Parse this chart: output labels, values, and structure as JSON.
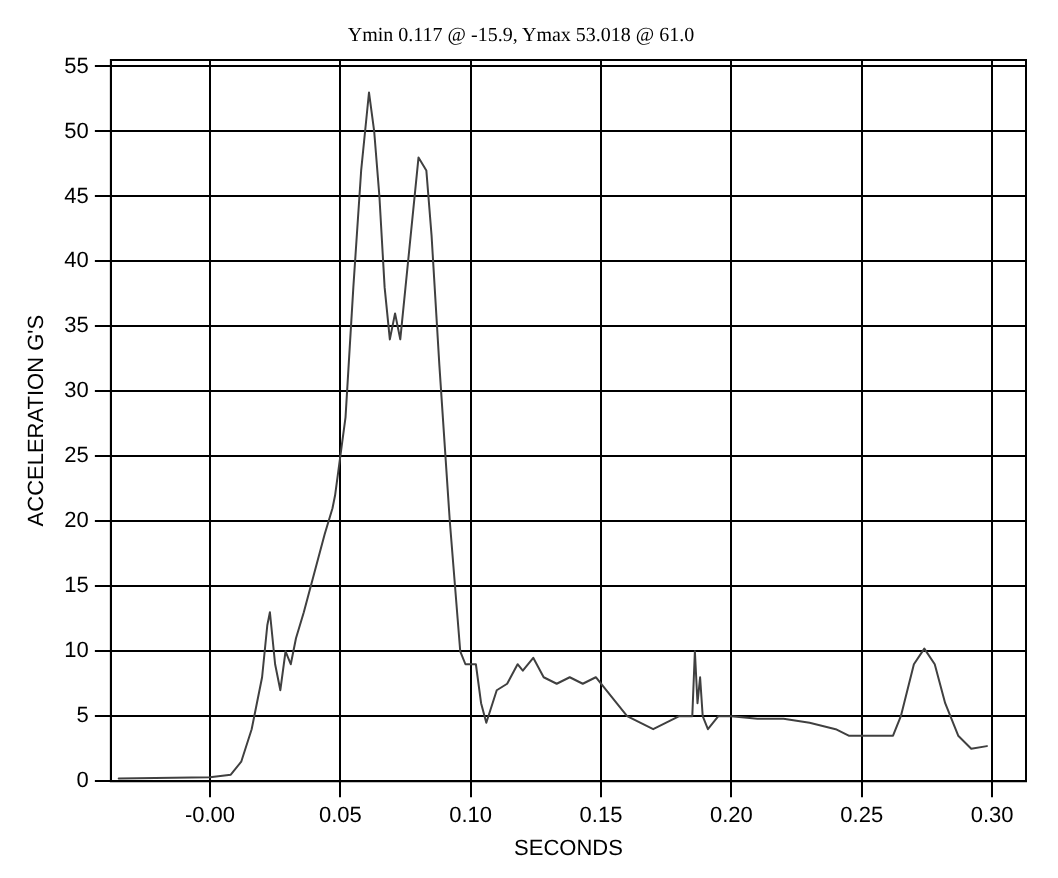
{
  "chart_data": {
    "type": "line",
    "title": "Ymin 0.117 @ -15.9, Ymax 53.018 @ 61.0",
    "xlabel": "SECONDS",
    "ylabel": "ACCELERATION G'S",
    "xlim": [
      -0.038,
      0.313
    ],
    "xticks": [
      {
        "value": 0,
        "label": "-0.00"
      },
      {
        "value": 0.05,
        "label": "0.05"
      },
      {
        "value": 0.1,
        "label": "0.10"
      },
      {
        "value": 0.15,
        "label": "0.15"
      },
      {
        "value": 0.2,
        "label": "0.20"
      },
      {
        "value": 0.25,
        "label": "0.25"
      },
      {
        "value": 0.3,
        "label": "0.30"
      }
    ],
    "ylim": [
      0,
      55.5
    ],
    "yticks": [
      0,
      5,
      10,
      15,
      20,
      25,
      30,
      35,
      40,
      45,
      50,
      55
    ],
    "grid": true,
    "legend": false,
    "marker": "none",
    "line_style": "solid",
    "series": [
      {
        "color": "#404040",
        "x": [
          -0.035,
          0,
          0.008,
          0.012,
          0.016,
          0.018,
          0.02,
          0.022,
          0.023,
          0.025,
          0.027,
          0.029,
          0.031,
          0.033,
          0.036,
          0.04,
          0.044,
          0.047,
          0.048,
          0.052,
          0.055,
          0.058,
          0.06,
          0.061,
          0.063,
          0.065,
          0.067,
          0.069,
          0.071,
          0.073,
          0.075,
          0.078,
          0.08,
          0.083,
          0.085,
          0.088,
          0.092,
          0.096,
          0.098,
          0.102,
          0.104,
          0.106,
          0.11,
          0.114,
          0.118,
          0.12,
          0.124,
          0.128,
          0.133,
          0.138,
          0.143,
          0.148,
          0.152,
          0.156,
          0.16,
          0.165,
          0.17,
          0.175,
          0.18,
          0.185,
          0.186,
          0.187,
          0.188,
          0.189,
          0.191,
          0.195,
          0.2,
          0.21,
          0.22,
          0.23,
          0.24,
          0.245,
          0.255,
          0.262,
          0.265,
          0.27,
          0.274,
          0.278,
          0.282,
          0.287,
          0.292,
          0.298
        ],
        "values": [
          0.2,
          0.3,
          0.5,
          1.5,
          4,
          6,
          8,
          12,
          13,
          9,
          7,
          10,
          9,
          11,
          13,
          16,
          19,
          21,
          22,
          28,
          38,
          47,
          51,
          53,
          50,
          45,
          38,
          34,
          36,
          34,
          38,
          44,
          48,
          47,
          42,
          32,
          20,
          10,
          9,
          9,
          6,
          4.5,
          7,
          7.5,
          9,
          8.5,
          9.5,
          8,
          7.5,
          8,
          7.5,
          8,
          7,
          6,
          5,
          4.5,
          4,
          4.5,
          5,
          5,
          10,
          6,
          8,
          5,
          4,
          5,
          5,
          4.8,
          4.8,
          4.5,
          4,
          3.5,
          3.5,
          3.5,
          5,
          9,
          10.2,
          9,
          6,
          3.5,
          2.5,
          2.7
        ]
      }
    ]
  }
}
